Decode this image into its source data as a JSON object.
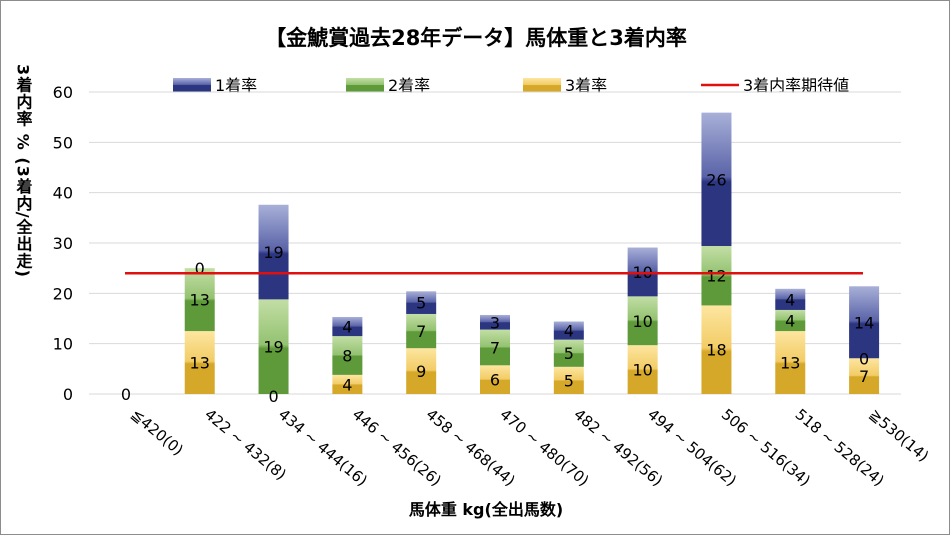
{
  "chart_data": {
    "type": "bar",
    "stacked": true,
    "title": "【金鯱賞過去28年データ】馬体重と3着内率",
    "xlabel": "馬体重 kg(全出馬数)",
    "ylabel": "3着内率 % (3着内/全出走)",
    "ylim": [
      0,
      60
    ],
    "yticks": [
      0,
      10,
      20,
      30,
      40,
      50,
      60
    ],
    "grid": true,
    "legend_position": "top",
    "categories": [
      "≦420(0)",
      "422 ~ 432(8)",
      "434 ~ 444(16)",
      "446 ~ 456(26)",
      "458 ~ 468(44)",
      "470 ~ 480(70)",
      "482 ~ 492(56)",
      "494 ~ 504(62)",
      "506 ~ 516(34)",
      "518 ~ 528(24)",
      "≧530(14)"
    ],
    "series": [
      {
        "name": "3着率",
        "color": "#d6a82a",
        "values": [
          0,
          12.5,
          0,
          3.8,
          9.1,
          5.7,
          5.4,
          9.7,
          17.6,
          12.5,
          7.1
        ],
        "labels": [
          "0",
          "13",
          "",
          "4",
          "9",
          "6",
          "5",
          "10",
          "18",
          "13",
          "7"
        ]
      },
      {
        "name": "2着率",
        "color": "#5e9a3a",
        "values": [
          0,
          12.5,
          18.8,
          7.7,
          6.8,
          7.1,
          5.4,
          9.7,
          11.8,
          4.2,
          0
        ],
        "labels": [
          "",
          "13",
          "19",
          "8",
          "7",
          "7",
          "5",
          "10",
          "12",
          "4",
          "0"
        ]
      },
      {
        "name": "1着率",
        "color": "#2b3580",
        "values": [
          0,
          0,
          18.8,
          3.8,
          4.5,
          2.9,
          3.6,
          9.7,
          26.5,
          4.2,
          14.3
        ],
        "labels": [
          "",
          "0",
          "19",
          "4",
          "5",
          "3",
          "4",
          "10",
          "26",
          "4",
          "14"
        ]
      }
    ],
    "bottom_labels": [
      "",
      "",
      "0",
      "",
      "",
      "",
      "",
      "",
      "",
      "",
      ""
    ],
    "reference_line": {
      "name": "3着内率期待値",
      "value": 24,
      "color": "#e01010"
    }
  }
}
